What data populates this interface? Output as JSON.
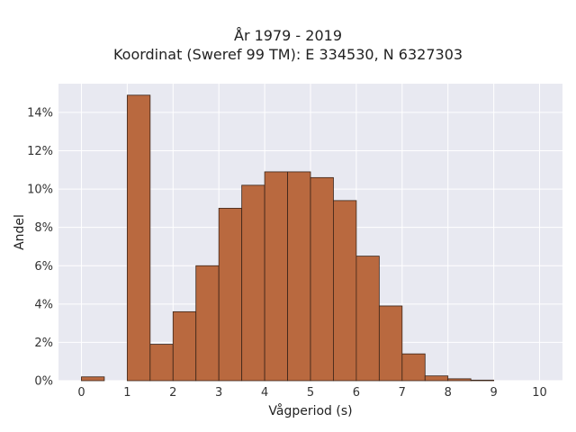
{
  "chart_data": {
    "type": "bar",
    "title": "År 1979 - 2019",
    "subtitle": "Koordinat (Sweref 99 TM): E 334530, N 6327303",
    "xlabel": "Vågperiod (s)",
    "ylabel": "Andel",
    "xlim": [
      -0.5,
      10.5
    ],
    "ylim": [
      0,
      15.5
    ],
    "grid": true,
    "bin_width": 0.5,
    "bins": [
      {
        "x0": 0.0,
        "x1": 0.5,
        "value": 0.2
      },
      {
        "x0": 0.5,
        "x1": 1.0,
        "value": 0.0
      },
      {
        "x0": 1.0,
        "x1": 1.5,
        "value": 14.9
      },
      {
        "x0": 1.5,
        "x1": 2.0,
        "value": 1.9
      },
      {
        "x0": 2.0,
        "x1": 2.5,
        "value": 3.6
      },
      {
        "x0": 2.5,
        "x1": 3.0,
        "value": 6.0
      },
      {
        "x0": 3.0,
        "x1": 3.5,
        "value": 9.0
      },
      {
        "x0": 3.5,
        "x1": 4.0,
        "value": 10.2
      },
      {
        "x0": 4.0,
        "x1": 4.5,
        "value": 10.9
      },
      {
        "x0": 4.5,
        "x1": 5.0,
        "value": 10.9
      },
      {
        "x0": 5.0,
        "x1": 5.5,
        "value": 10.6
      },
      {
        "x0": 5.5,
        "x1": 6.0,
        "value": 9.4
      },
      {
        "x0": 6.0,
        "x1": 6.5,
        "value": 6.5
      },
      {
        "x0": 6.5,
        "x1": 7.0,
        "value": 3.9
      },
      {
        "x0": 7.0,
        "x1": 7.5,
        "value": 1.4
      },
      {
        "x0": 7.5,
        "x1": 8.0,
        "value": 0.25
      },
      {
        "x0": 8.0,
        "x1": 8.5,
        "value": 0.1
      },
      {
        "x0": 8.5,
        "x1": 9.0,
        "value": 0.03
      }
    ],
    "xticks": [
      0,
      1,
      2,
      3,
      4,
      5,
      6,
      7,
      8,
      9,
      10
    ],
    "xtick_labels": [
      "0",
      "1",
      "2",
      "3",
      "4",
      "5",
      "6",
      "7",
      "8",
      "9",
      "10"
    ],
    "yticks": [
      0,
      2,
      4,
      6,
      8,
      10,
      12,
      14
    ],
    "ytick_labels": [
      "0%",
      "2%",
      "4%",
      "6%",
      "8%",
      "10%",
      "12%",
      "14%"
    ],
    "colors": {
      "bar_fill": "#b9693f",
      "bar_stroke": "#3a2418",
      "plot_bg": "#e8e9f1",
      "grid": "#ffffff"
    }
  }
}
